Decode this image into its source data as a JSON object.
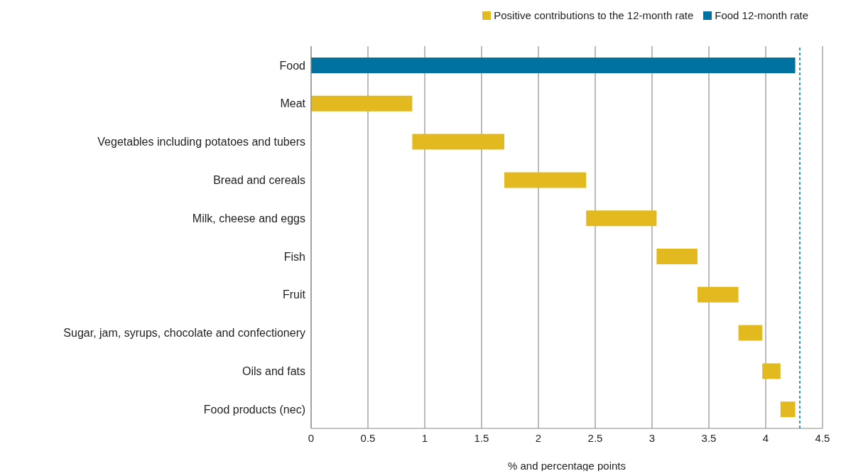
{
  "chart_data": {
    "type": "bar",
    "orientation": "horizontal",
    "categories": [
      "Food",
      "Meat",
      "Vegetables including potatoes and tubers",
      "Bread and cereals",
      "Milk, cheese and eggs",
      "Fish",
      "Fruit",
      "Sugar, jam, syrups, chocolate and confectionery",
      "Oils and fats",
      "Food products (nec)"
    ],
    "series": [
      {
        "name": "Positive contributions to the 12-month rate",
        "color": "#e3b920",
        "values": [
          null,
          0.89,
          0.81,
          0.72,
          0.62,
          0.36,
          0.36,
          0.21,
          0.16,
          0.13
        ],
        "base": [
          null,
          0,
          0.89,
          1.7,
          2.42,
          3.04,
          3.4,
          3.76,
          3.97,
          4.13
        ]
      },
      {
        "name": "Food 12-month rate",
        "color": "#0072a0",
        "values": [
          4.26,
          null,
          null,
          null,
          null,
          null,
          null,
          null,
          null,
          null
        ],
        "base": [
          0,
          null,
          null,
          null,
          null,
          null,
          null,
          null,
          null,
          null
        ]
      }
    ],
    "xlim": [
      0,
      4.5
    ],
    "xticks": [
      0,
      0.5,
      1,
      1.5,
      2,
      2.5,
      3,
      3.5,
      4,
      4.5
    ],
    "xlabel": "% and percentage points",
    "grid": "x",
    "legend": "top right",
    "ref_lines": [
      {
        "axis": "x",
        "value": 4.3,
        "color": "#0072a0",
        "line_style": "dashed"
      }
    ]
  }
}
